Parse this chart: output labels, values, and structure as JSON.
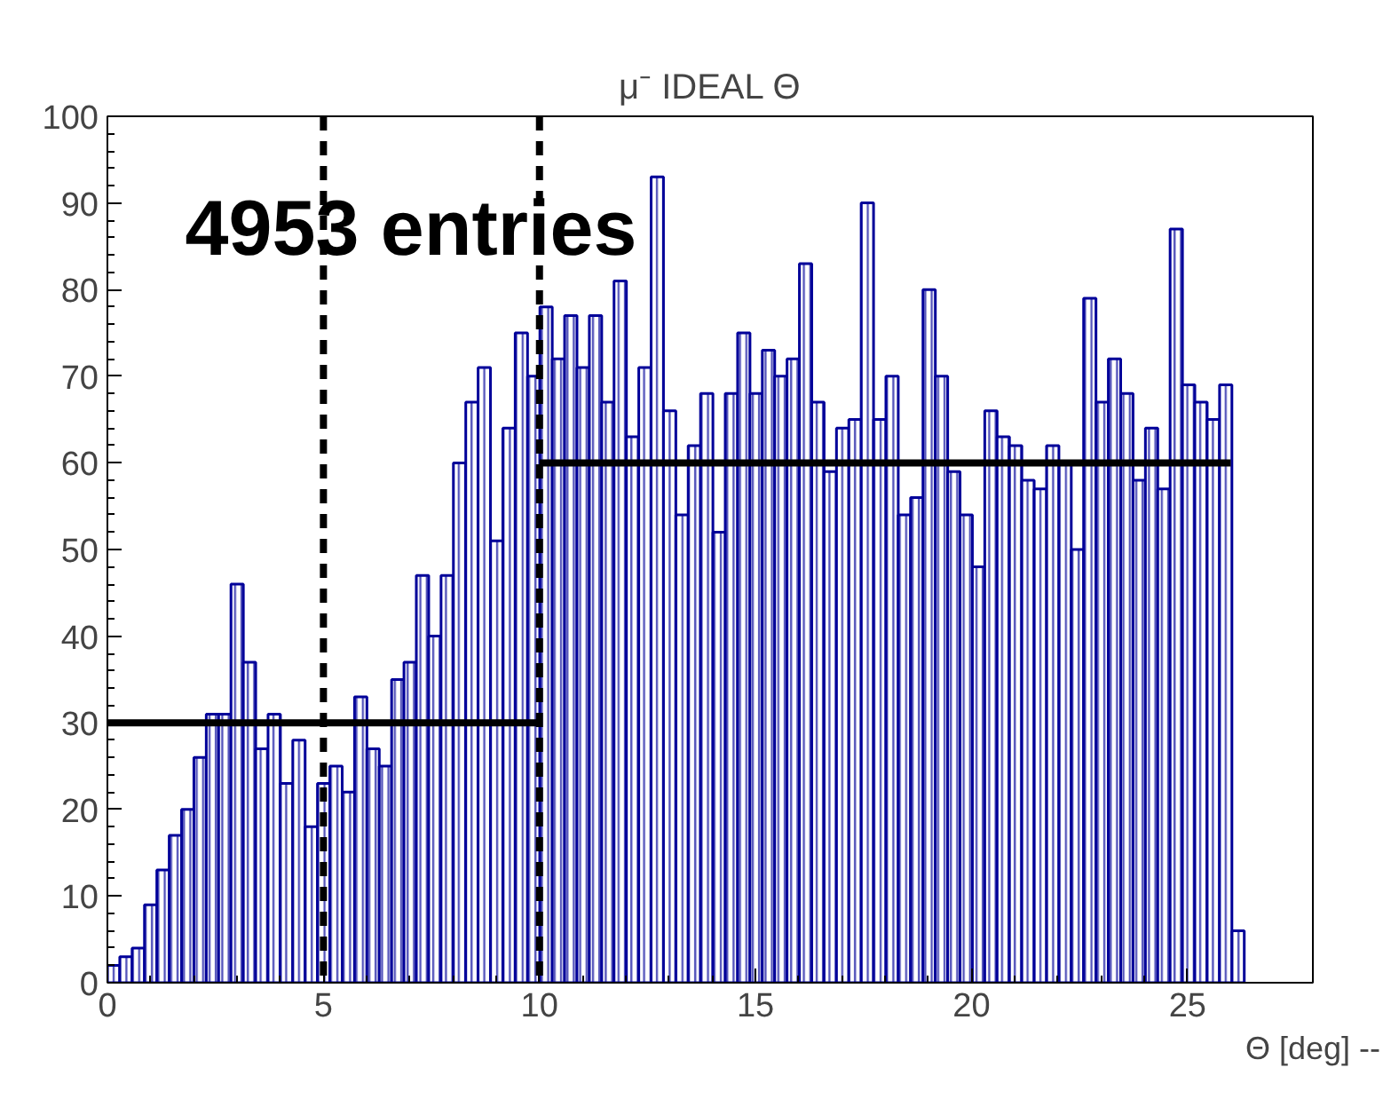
{
  "chart_data": {
    "type": "histogram",
    "title": "μ⁻ IDEAL Θ",
    "xlabel": "Θ [deg] --",
    "bins": [
      0,
      0.286,
      0.572,
      0.858,
      1.144,
      1.43,
      1.716,
      2.002,
      2.288,
      2.574,
      2.86,
      3.146,
      3.432,
      3.718,
      4.004,
      4.29,
      4.576,
      4.862,
      5.148,
      5.434,
      5.72,
      6.006,
      6.292,
      6.578,
      6.864,
      7.15,
      7.436,
      7.722,
      8.008,
      8.294,
      8.58,
      8.866,
      9.152,
      9.438,
      9.724,
      10.01,
      10.296,
      10.582,
      10.868,
      11.154,
      11.44,
      11.726,
      12.012,
      12.298,
      12.584,
      12.87,
      13.156,
      13.442,
      13.728,
      14.014,
      14.3,
      14.586,
      14.872,
      15.158,
      15.444,
      15.73,
      16.016,
      16.302,
      16.588,
      16.874,
      17.16,
      17.446,
      17.732,
      18.018,
      18.304,
      18.59,
      18.876,
      19.162,
      19.448,
      19.734,
      20.02,
      20.306,
      20.592,
      20.878,
      21.164,
      21.45,
      21.736,
      22.022,
      22.308,
      22.594,
      22.88,
      23.166,
      23.452,
      23.738,
      24.024,
      24.31,
      24.596,
      24.882,
      25.168,
      25.454,
      25.74,
      26.026,
      26.312
    ],
    "values": [
      2,
      3,
      4,
      9,
      13,
      17,
      20,
      26,
      31,
      31,
      46,
      37,
      27,
      31,
      23,
      28,
      18,
      23,
      25,
      22,
      33,
      27,
      25,
      35,
      37,
      47,
      40,
      47,
      60,
      67,
      71,
      51,
      64,
      75,
      70,
      78,
      72,
      77,
      71,
      77,
      67,
      81,
      63,
      71,
      93,
      66,
      54,
      62,
      68,
      52,
      68,
      75,
      68,
      73,
      70,
      72,
      83,
      67,
      59,
      64,
      65,
      90,
      65,
      70,
      54,
      56,
      80,
      70,
      59,
      54,
      48,
      66,
      63,
      62,
      58,
      57,
      62,
      60,
      50,
      79,
      67,
      72,
      68,
      58,
      64,
      57,
      87,
      69,
      67,
      65,
      69,
      6
    ],
    "color": "#000099",
    "series": [
      {
        "type": "line",
        "x": [
          0,
          10
        ],
        "values": [
          30,
          30
        ],
        "color": "#000000"
      },
      {
        "type": "line",
        "x": [
          10,
          26
        ],
        "values": [
          60,
          60
        ],
        "color": "#000000"
      }
    ],
    "ref_lines": [
      {
        "axis": "x",
        "value": 5,
        "color": "#000000",
        "line_style": "dashed"
      },
      {
        "axis": "x",
        "value": 10,
        "color": "#000000",
        "line_style": "dashed"
      }
    ],
    "annotations": [
      "4953 entries"
    ],
    "xlim": [
      0,
      27.9
    ],
    "xticks": [
      0,
      5,
      10,
      15,
      20,
      25
    ],
    "ylim": [
      0,
      100
    ],
    "yticks": [
      0,
      10,
      20,
      30,
      40,
      50,
      60,
      70,
      80,
      90,
      100
    ],
    "grid": false
  }
}
